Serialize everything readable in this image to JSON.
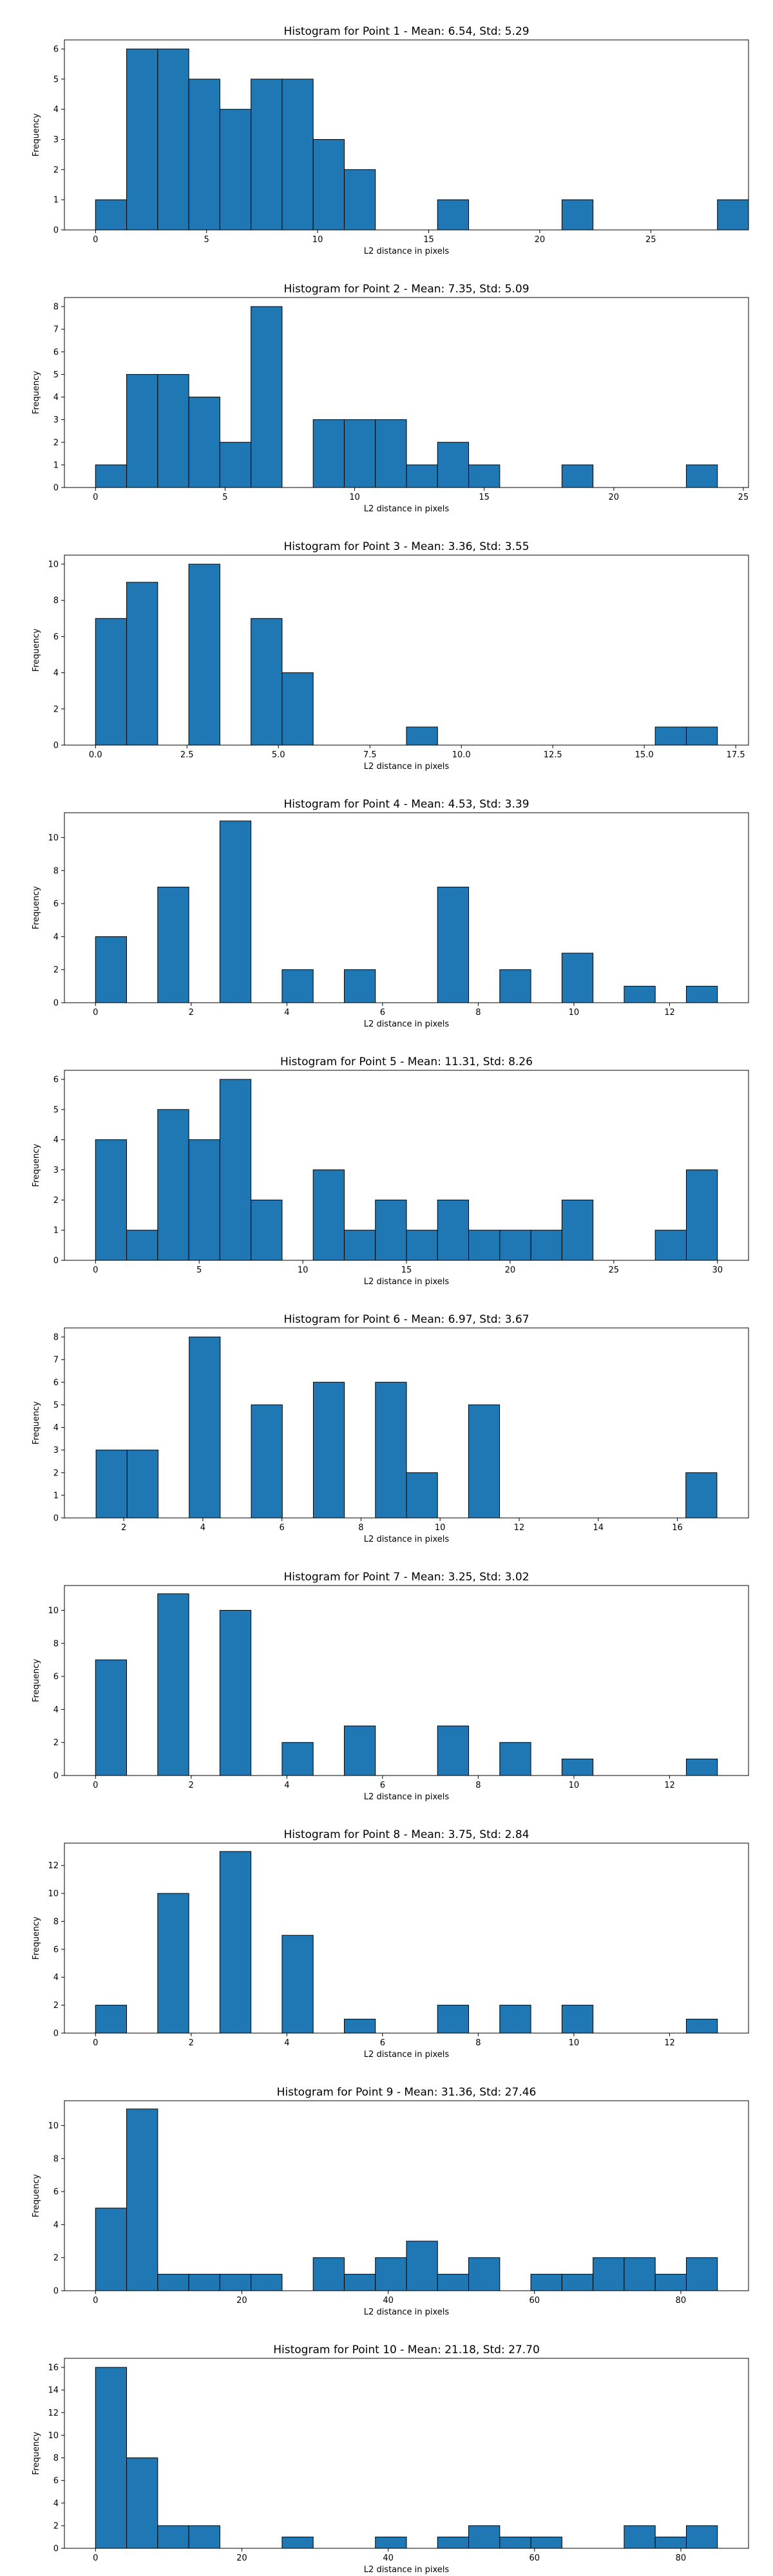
{
  "colors": {
    "bar_fill": "#1f77b4",
    "bar_edge": "#000000",
    "background": "#ffffff"
  },
  "chart_data": [
    {
      "type": "bar",
      "title": "Histogram for Point 1 - Mean: 6.54, Std: 5.29",
      "xlabel": "L2 distance in pixels",
      "ylabel": "Frequency",
      "xlim": [
        -1.4,
        29.4
      ],
      "ylim": [
        0,
        6.3
      ],
      "xticks": [
        0,
        5,
        10,
        15,
        20,
        25
      ],
      "xticklabels": [
        "0",
        "5",
        "10",
        "15",
        "20",
        "25"
      ],
      "yticks": [
        0,
        1,
        2,
        3,
        4,
        5,
        6
      ],
      "yticklabels": [
        "0",
        "1",
        "2",
        "3",
        "4",
        "5",
        "6"
      ],
      "bin_start": 0.0,
      "bin_width": 1.4,
      "counts": [
        1,
        6,
        6,
        5,
        4,
        5,
        5,
        3,
        2,
        0,
        0,
        1,
        0,
        0,
        0,
        1,
        0,
        0,
        0,
        0,
        1
      ],
      "grid": false,
      "legend": "none"
    },
    {
      "type": "bar",
      "title": "Histogram for Point 2 - Mean: 7.35, Std: 5.09",
      "xlabel": "L2 distance in pixels",
      "ylabel": "Frequency",
      "xlim": [
        -1.2,
        25.2
      ],
      "ylim": [
        0,
        8.4
      ],
      "xticks": [
        0,
        5,
        10,
        15,
        20,
        25
      ],
      "xticklabels": [
        "0",
        "5",
        "10",
        "15",
        "20",
        "25"
      ],
      "yticks": [
        0,
        1,
        2,
        3,
        4,
        5,
        6,
        7,
        8
      ],
      "yticklabels": [
        "0",
        "1",
        "2",
        "3",
        "4",
        "5",
        "6",
        "7",
        "8"
      ],
      "bin_start": 0.0,
      "bin_width": 1.2,
      "counts": [
        1,
        5,
        5,
        4,
        2,
        8,
        0,
        3,
        3,
        3,
        1,
        2,
        1,
        0,
        0,
        1,
        0,
        0,
        0,
        1
      ],
      "grid": false,
      "legend": "none"
    },
    {
      "type": "bar",
      "title": "Histogram for Point 3 - Mean: 3.36, Std: 3.55",
      "xlabel": "L2 distance in pixels",
      "ylabel": "Frequency",
      "xlim": [
        -0.85,
        17.85
      ],
      "ylim": [
        0,
        10.5
      ],
      "xticks": [
        0.0,
        2.5,
        5.0,
        7.5,
        10.0,
        12.5,
        15.0,
        17.5
      ],
      "xticklabels": [
        "0.0",
        "2.5",
        "5.0",
        "7.5",
        "10.0",
        "12.5",
        "15.0",
        "17.5"
      ],
      "yticks": [
        0,
        2,
        4,
        6,
        8,
        10
      ],
      "yticklabels": [
        "0",
        "2",
        "4",
        "6",
        "8",
        "10"
      ],
      "bin_start": 0.0,
      "bin_width": 0.85,
      "counts": [
        7,
        9,
        0,
        10,
        0,
        7,
        4,
        0,
        0,
        0,
        1,
        0,
        0,
        0,
        0,
        0,
        0,
        0,
        1,
        1
      ],
      "grid": false,
      "legend": "none"
    },
    {
      "type": "bar",
      "title": "Histogram for Point 4 - Mean: 4.53, Std: 3.39",
      "xlabel": "L2 distance in pixels",
      "ylabel": "Frequency",
      "xlim": [
        -0.65,
        13.65
      ],
      "ylim": [
        0,
        11.5
      ],
      "xticks": [
        0,
        2,
        4,
        6,
        8,
        10,
        12
      ],
      "xticklabels": [
        "0",
        "2",
        "4",
        "6",
        "8",
        "10",
        "12"
      ],
      "yticks": [
        0,
        2,
        4,
        6,
        8,
        10
      ],
      "yticklabels": [
        "0",
        "2",
        "4",
        "6",
        "8",
        "10"
      ],
      "bin_start": 0.0,
      "bin_width": 0.65,
      "counts": [
        4,
        0,
        7,
        0,
        11,
        0,
        2,
        0,
        2,
        0,
        0,
        7,
        0,
        2,
        0,
        3,
        0,
        1,
        0,
        1
      ],
      "grid": false,
      "legend": "none"
    },
    {
      "type": "bar",
      "title": "Histogram for Point 5 - Mean: 11.31, Std: 8.26",
      "xlabel": "L2 distance in pixels",
      "ylabel": "Frequency",
      "xlim": [
        -1.5,
        31.5
      ],
      "ylim": [
        0,
        6.3
      ],
      "xticks": [
        0,
        5,
        10,
        15,
        20,
        25,
        30
      ],
      "xticklabels": [
        "0",
        "5",
        "10",
        "15",
        "20",
        "25",
        "30"
      ],
      "yticks": [
        0,
        1,
        2,
        3,
        4,
        5,
        6
      ],
      "yticklabels": [
        "0",
        "1",
        "2",
        "3",
        "4",
        "5",
        "6"
      ],
      "bin_start": 0.0,
      "bin_width": 1.5,
      "counts": [
        4,
        1,
        5,
        4,
        6,
        2,
        0,
        3,
        1,
        2,
        1,
        2,
        1,
        1,
        1,
        2,
        0,
        0,
        1,
        3
      ],
      "grid": false,
      "legend": "none"
    },
    {
      "type": "bar",
      "title": "Histogram for Point 6 - Mean: 6.97, Std: 3.67",
      "xlabel": "L2 distance in pixels",
      "ylabel": "Frequency",
      "xlim": [
        0.5,
        17.8
      ],
      "ylim": [
        0,
        8.4
      ],
      "xticks": [
        2,
        4,
        6,
        8,
        10,
        12,
        14,
        16
      ],
      "xticklabels": [
        "2",
        "4",
        "6",
        "8",
        "10",
        "12",
        "14",
        "16"
      ],
      "yticks": [
        0,
        1,
        2,
        3,
        4,
        5,
        6,
        7,
        8
      ],
      "yticklabels": [
        "0",
        "1",
        "2",
        "3",
        "4",
        "5",
        "6",
        "7",
        "8"
      ],
      "bin_start": 1.3,
      "bin_width": 0.785,
      "counts": [
        3,
        3,
        0,
        8,
        0,
        5,
        0,
        6,
        0,
        6,
        2,
        0,
        5,
        0,
        0,
        0,
        0,
        0,
        0,
        2
      ],
      "grid": false,
      "legend": "none"
    },
    {
      "type": "bar",
      "title": "Histogram for Point 7 - Mean: 3.25, Std: 3.02",
      "xlabel": "L2 distance in pixels",
      "ylabel": "Frequency",
      "xlim": [
        -0.65,
        13.65
      ],
      "ylim": [
        0,
        11.5
      ],
      "xticks": [
        0,
        2,
        4,
        6,
        8,
        10,
        12
      ],
      "xticklabels": [
        "0",
        "2",
        "4",
        "6",
        "8",
        "10",
        "12"
      ],
      "yticks": [
        0,
        2,
        4,
        6,
        8,
        10
      ],
      "yticklabels": [
        "0",
        "2",
        "4",
        "6",
        "8",
        "10"
      ],
      "bin_start": 0.0,
      "bin_width": 0.65,
      "counts": [
        7,
        0,
        11,
        0,
        10,
        0,
        2,
        0,
        3,
        0,
        0,
        3,
        0,
        2,
        0,
        1,
        0,
        0,
        0,
        1
      ],
      "grid": false,
      "legend": "none"
    },
    {
      "type": "bar",
      "title": "Histogram for Point 8 - Mean: 3.75, Std: 2.84",
      "xlabel": "L2 distance in pixels",
      "ylabel": "Frequency",
      "xlim": [
        -0.65,
        13.65
      ],
      "ylim": [
        0,
        13.6
      ],
      "xticks": [
        0,
        2,
        4,
        6,
        8,
        10,
        12
      ],
      "xticklabels": [
        "0",
        "2",
        "4",
        "6",
        "8",
        "10",
        "12"
      ],
      "yticks": [
        0,
        2,
        4,
        6,
        8,
        10,
        12
      ],
      "yticklabels": [
        "0",
        "2",
        "4",
        "6",
        "8",
        "10",
        "12"
      ],
      "bin_start": 0.0,
      "bin_width": 0.65,
      "counts": [
        2,
        0,
        10,
        0,
        13,
        0,
        7,
        0,
        1,
        0,
        0,
        2,
        0,
        2,
        0,
        2,
        0,
        0,
        0,
        1
      ],
      "grid": false,
      "legend": "none"
    },
    {
      "type": "bar",
      "title": "Histogram for Point 9 - Mean: 31.36, Std: 27.46",
      "xlabel": "L2 distance in pixels",
      "ylabel": "Frequency",
      "xlim": [
        -4.25,
        89.25
      ],
      "ylim": [
        0,
        11.5
      ],
      "xticks": [
        0,
        20,
        40,
        60,
        80
      ],
      "xticklabels": [
        "0",
        "20",
        "40",
        "60",
        "80"
      ],
      "yticks": [
        0,
        2,
        4,
        6,
        8,
        10
      ],
      "yticklabels": [
        "0",
        "2",
        "4",
        "6",
        "8",
        "10"
      ],
      "bin_start": 0.0,
      "bin_width": 4.25,
      "counts": [
        5,
        11,
        1,
        1,
        1,
        1,
        0,
        2,
        1,
        2,
        3,
        1,
        2,
        0,
        1,
        1,
        2,
        2,
        1,
        2
      ],
      "grid": false,
      "legend": "none"
    },
    {
      "type": "bar",
      "title": "Histogram for Point 10 - Mean: 21.18, Std: 27.70",
      "xlabel": "L2 distance in pixels",
      "ylabel": "Frequency",
      "xlim": [
        -4.25,
        89.25
      ],
      "ylim": [
        0,
        16.8
      ],
      "xticks": [
        0,
        20,
        40,
        60,
        80
      ],
      "xticklabels": [
        "0",
        "20",
        "40",
        "60",
        "80"
      ],
      "yticks": [
        0,
        2,
        4,
        6,
        8,
        10,
        12,
        14,
        16
      ],
      "yticklabels": [
        "0",
        "2",
        "4",
        "6",
        "8",
        "10",
        "12",
        "14",
        "16"
      ],
      "bin_start": 0.0,
      "bin_width": 4.25,
      "counts": [
        16,
        8,
        2,
        2,
        0,
        0,
        1,
        0,
        0,
        1,
        0,
        1,
        2,
        1,
        1,
        0,
        0,
        2,
        1,
        2
      ],
      "grid": false,
      "legend": "none"
    }
  ]
}
